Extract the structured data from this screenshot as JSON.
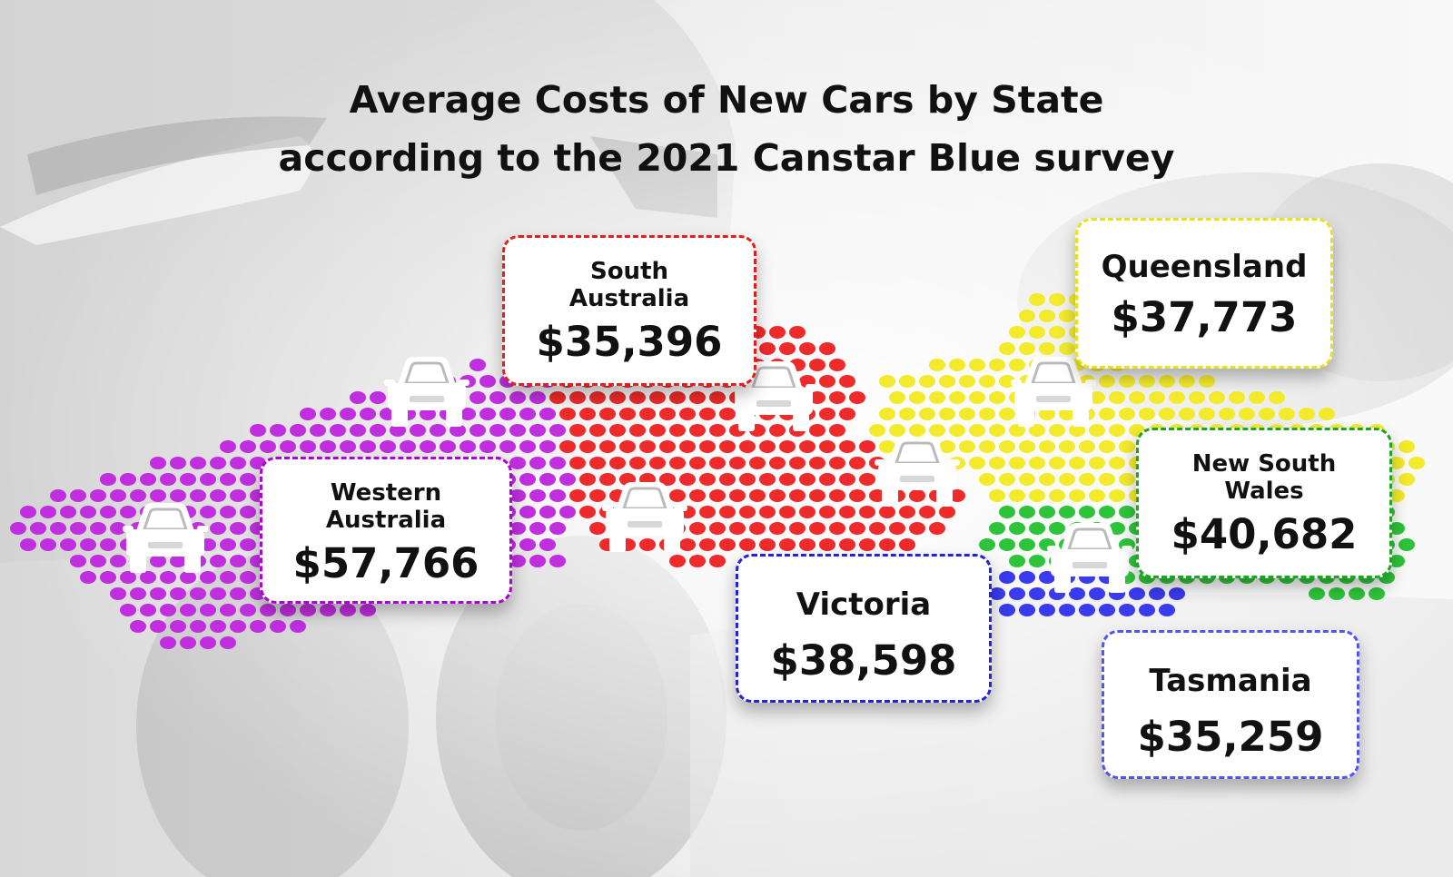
{
  "title": {
    "line1": "Average Costs of New Cars by State",
    "line2": "according to the 2021 Canstar Blue survey"
  },
  "states": [
    {
      "key": "wa",
      "name": "Western Australia",
      "price": "$57,766",
      "color": "#b000d8"
    },
    {
      "key": "sa",
      "name": "South Australia",
      "price": "$35,396",
      "color": "#e41e1e"
    },
    {
      "key": "qld",
      "name": "Queensland",
      "price": "$37,773",
      "color": "#e8e21c"
    },
    {
      "key": "nsw",
      "name": "New South Wales",
      "price": "$40,682",
      "color": "#1ea51e"
    },
    {
      "key": "vic",
      "name": "Victoria",
      "price": "$38,598",
      "color": "#2222dd"
    },
    {
      "key": "tas",
      "name": "Tasmania",
      "price": "$35,259",
      "color": "#5555ee"
    }
  ],
  "label_lines": {
    "wa": [
      "Western",
      "Australia"
    ],
    "sa": [
      "South",
      "Australia"
    ],
    "nsw": [
      "New South",
      "Wales"
    ]
  },
  "dot_colors": {
    "wa": "#c12ee0",
    "sa": "#ee2a2a",
    "nt": "#ee2a2a",
    "qld": "#f2ea2a",
    "nsw": "#2ec43a",
    "vic": "#3a3aee"
  },
  "icons": [
    "car-icon"
  ]
}
